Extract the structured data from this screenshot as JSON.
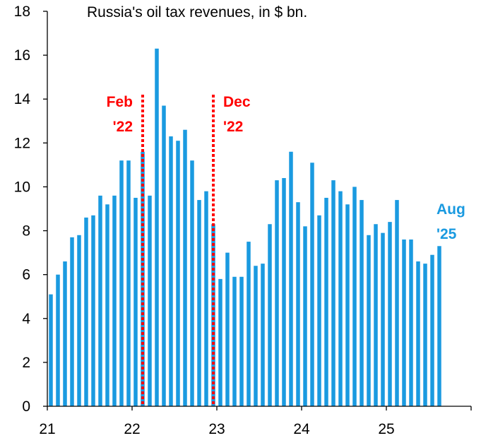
{
  "chart_data": {
    "type": "bar",
    "title": "Russia's oil tax revenues, in $ bn.",
    "xlabel": "",
    "ylabel": "",
    "ylim": [
      0,
      18
    ],
    "yticks": [
      0,
      2,
      4,
      6,
      8,
      10,
      12,
      14,
      16,
      18
    ],
    "xlim": [
      "2021-01",
      "2025-12"
    ],
    "xticks": [
      {
        "label": "21",
        "month": "2021-01"
      },
      {
        "label": "22",
        "month": "2022-01"
      },
      {
        "label": "23",
        "month": "2023-01"
      },
      {
        "label": "24",
        "month": "2024-01"
      },
      {
        "label": "25",
        "month": "2025-01"
      }
    ],
    "grid": false,
    "bar_color": "#1a9ae0",
    "categories": [
      "2021-01",
      "2021-02",
      "2021-03",
      "2021-04",
      "2021-05",
      "2021-06",
      "2021-07",
      "2021-08",
      "2021-09",
      "2021-10",
      "2021-11",
      "2021-12",
      "2022-01",
      "2022-02",
      "2022-03",
      "2022-04",
      "2022-05",
      "2022-06",
      "2022-07",
      "2022-08",
      "2022-09",
      "2022-10",
      "2022-11",
      "2022-12",
      "2023-01",
      "2023-02",
      "2023-03",
      "2023-04",
      "2023-05",
      "2023-06",
      "2023-07",
      "2023-08",
      "2023-09",
      "2023-10",
      "2023-11",
      "2023-12",
      "2024-01",
      "2024-02",
      "2024-03",
      "2024-04",
      "2024-05",
      "2024-06",
      "2024-07",
      "2024-08",
      "2024-09",
      "2024-10",
      "2024-11",
      "2024-12",
      "2025-01",
      "2025-02",
      "2025-03",
      "2025-04",
      "2025-05",
      "2025-06",
      "2025-07",
      "2025-08"
    ],
    "values": [
      5.1,
      6.0,
      6.6,
      7.7,
      7.8,
      8.6,
      8.7,
      9.6,
      9.2,
      9.6,
      11.2,
      11.2,
      9.5,
      11.6,
      9.6,
      16.3,
      13.7,
      12.3,
      12.1,
      12.6,
      11.2,
      9.4,
      9.8,
      8.3,
      5.8,
      7.0,
      5.9,
      5.9,
      7.5,
      6.4,
      6.5,
      8.3,
      10.3,
      10.4,
      11.6,
      9.3,
      8.2,
      11.1,
      8.7,
      9.5,
      10.3,
      9.8,
      9.2,
      10.0,
      9.4,
      7.8,
      8.3,
      7.9,
      8.4,
      9.4,
      7.6,
      7.6,
      6.6,
      6.5,
      6.9,
      7.3
    ],
    "annotations": [
      {
        "line1": "Feb",
        "line2": "'22",
        "month": "2022-02",
        "color": "#ff0000",
        "style": "dotted vertical line"
      },
      {
        "line1": "Dec",
        "line2": "'22",
        "month": "2022-12",
        "color": "#ff0000",
        "style": "dotted vertical line"
      },
      {
        "line1": "Aug",
        "line2": "'25",
        "month": "2025-08",
        "color": "#1a9ae0",
        "style": "label"
      }
    ]
  }
}
